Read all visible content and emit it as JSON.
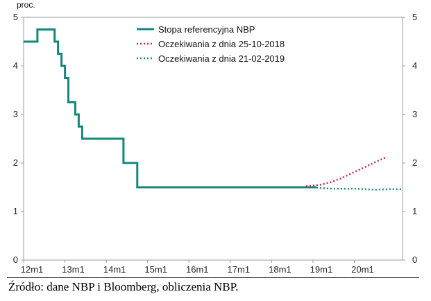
{
  "chart_data": {
    "type": "line",
    "unit_label": "proc.",
    "x_ticks": [
      "12m1",
      "13m1",
      "14m1",
      "15m1",
      "16m1",
      "17m1",
      "18m1",
      "19m1",
      "20m1"
    ],
    "x_range": [
      0,
      110
    ],
    "y_ticks_left": [
      "0",
      "1",
      "2",
      "3",
      "4",
      "5"
    ],
    "y_ticks_right": [
      "0",
      "1",
      "2",
      "3",
      "4",
      "5"
    ],
    "ylim": [
      0,
      5
    ],
    "legend_position": "top-center",
    "series": [
      {
        "name": "Stopa referencyjna NBP",
        "style": "solid",
        "color": "#12877a",
        "step": true,
        "points": [
          [
            0,
            4.5
          ],
          [
            4,
            4.75
          ],
          [
            9,
            4.5
          ],
          [
            10,
            4.25
          ],
          [
            11,
            4.0
          ],
          [
            12,
            3.75
          ],
          [
            13,
            3.25
          ],
          [
            15,
            3.0
          ],
          [
            16,
            2.75
          ],
          [
            17,
            2.5
          ],
          [
            29,
            2.0
          ],
          [
            33,
            1.5
          ],
          [
            85,
            1.5
          ]
        ]
      },
      {
        "name": "Oczekiwania z dnia 25-10-2018",
        "style": "dotted",
        "color": "#cc1f5e",
        "step": false,
        "points": [
          [
            82,
            1.52
          ],
          [
            86,
            1.55
          ],
          [
            89,
            1.6
          ],
          [
            92,
            1.68
          ],
          [
            95,
            1.78
          ],
          [
            98,
            1.88
          ],
          [
            101,
            1.98
          ],
          [
            104,
            2.08
          ],
          [
            105,
            2.11
          ]
        ]
      },
      {
        "name": "Oczekiwania z dnia 21-02-2019",
        "style": "dotted",
        "color": "#12877a",
        "step": false,
        "points": [
          [
            84,
            1.5
          ],
          [
            87,
            1.48
          ],
          [
            90,
            1.47
          ],
          [
            93,
            1.47
          ],
          [
            96,
            1.47
          ],
          [
            99,
            1.46
          ],
          [
            102,
            1.45
          ],
          [
            106,
            1.46
          ],
          [
            110,
            1.46
          ]
        ]
      }
    ]
  },
  "source_text": "Źródło: dane NBP i Bloomberg, obliczenia NBP."
}
